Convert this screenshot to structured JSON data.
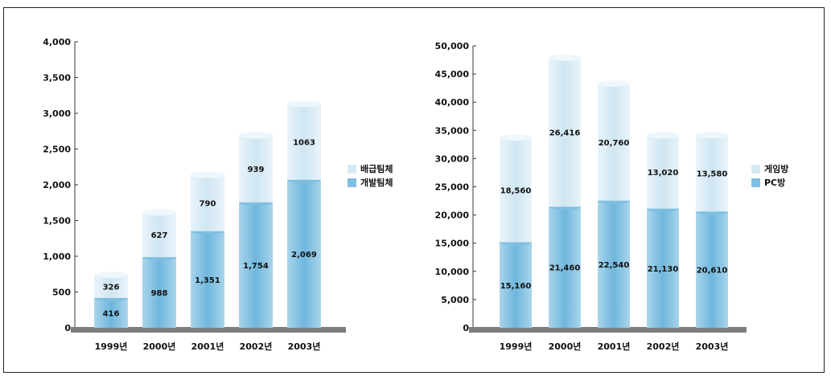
{
  "colors": {
    "top": "#d6eaf4",
    "bottom": "#7fbfe0",
    "floor": "#7d7d7d"
  },
  "chart_data": [
    {
      "type": "bar",
      "stacked": true,
      "categories": [
        "1999년",
        "2000년",
        "2001년",
        "2002년",
        "2003년"
      ],
      "ylim": [
        0,
        4000
      ],
      "yticks": [
        "4,000",
        "3,500",
        "3,000",
        "2,500",
        "2,000",
        "1,500",
        "1,000",
        "500",
        "0"
      ],
      "series": [
        {
          "name": "개발팀체",
          "values": [
            416,
            988,
            1351,
            1754,
            2069
          ]
        },
        {
          "name": "배급팀체",
          "values": [
            326,
            627,
            790,
            939,
            1063
          ]
        }
      ],
      "labels": {
        "bottom": [
          "416",
          "988",
          "1,351",
          "1,754",
          "2,069"
        ],
        "top": [
          "326",
          "627",
          "790",
          "939",
          "1063"
        ]
      }
    },
    {
      "type": "bar",
      "stacked": true,
      "categories": [
        "1999년",
        "2000년",
        "2001년",
        "2002년",
        "2003년"
      ],
      "ylim": [
        0,
        50000
      ],
      "yticks": [
        "50,000",
        "45,000",
        "40,000",
        "35,000",
        "30,000",
        "25,000",
        "20,000",
        "15,000",
        "10,000",
        "5,000",
        "0"
      ],
      "series": [
        {
          "name": "PC방",
          "values": [
            15160,
            21460,
            22540,
            21130,
            20610
          ]
        },
        {
          "name": "게임방",
          "values": [
            18560,
            26416,
            20760,
            13020,
            13580
          ]
        }
      ],
      "labels": {
        "bottom": [
          "15,160",
          "21,460",
          "22,540",
          "21,130",
          "20,610"
        ],
        "top": [
          "18,560",
          "26,416",
          "20,760",
          "13,020",
          "13,580"
        ]
      }
    }
  ]
}
